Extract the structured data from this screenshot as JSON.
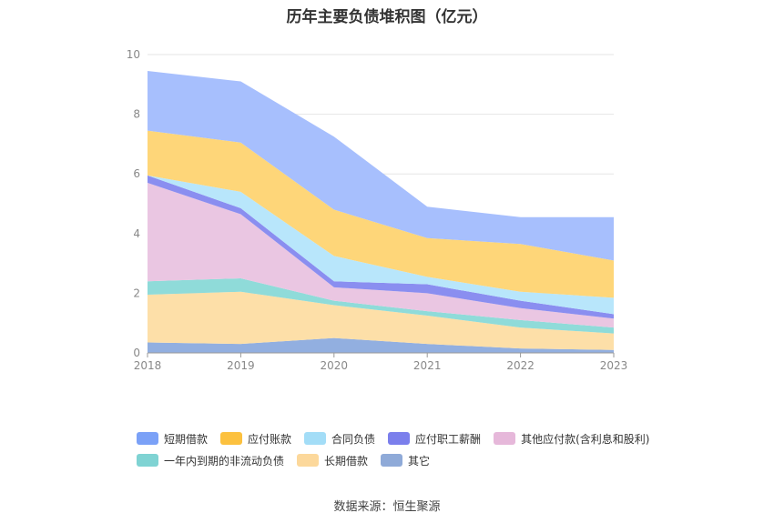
{
  "chart_data": {
    "type": "area",
    "title": "历年主要负债堆积图（亿元）",
    "categories": [
      "2018",
      "2019",
      "2020",
      "2021",
      "2022",
      "2023"
    ],
    "ylim": [
      0,
      10
    ],
    "yticks": [
      "0",
      "2",
      "4",
      "6",
      "8",
      "10"
    ],
    "grid": true,
    "legend_position": "bottom",
    "series": [
      {
        "name": "其它",
        "color": "#92afe0",
        "values": [
          0.35,
          0.3,
          0.5,
          0.3,
          0.15,
          0.1
        ]
      },
      {
        "name": "长期借款",
        "color": "#fddfa8",
        "values": [
          1.6,
          1.75,
          1.1,
          0.95,
          0.7,
          0.55
        ]
      },
      {
        "name": "一年内到期的非流动负债",
        "color": "#8fdbd9",
        "values": [
          0.45,
          0.45,
          0.15,
          0.15,
          0.25,
          0.2
        ]
      },
      {
        "name": "其他应付款(含利息和股利)",
        "color": "#eac6e2",
        "values": [
          3.3,
          2.15,
          0.45,
          0.6,
          0.4,
          0.3
        ]
      },
      {
        "name": "应付职工薪酬",
        "color": "#8a8ef0",
        "values": [
          0.25,
          0.2,
          0.2,
          0.3,
          0.25,
          0.15
        ]
      },
      {
        "name": "合同负债",
        "color": "#b8e6fb",
        "values": [
          0.0,
          0.55,
          0.85,
          0.25,
          0.3,
          0.55
        ]
      },
      {
        "name": "应付账款",
        "color": "#fed679",
        "values": [
          1.5,
          1.65,
          1.55,
          1.3,
          1.6,
          1.25
        ]
      },
      {
        "name": "短期借款",
        "color": "#a7bffd",
        "values": [
          2.0,
          2.05,
          2.45,
          1.05,
          0.9,
          1.45
        ]
      }
    ]
  },
  "legend_colors": {
    "短期借款": "#7ba1f7",
    "应付账款": "#fcc13f",
    "合同负债": "#a3ddf7",
    "应付职工薪酬": "#7b7fec",
    "其他应付款(含利息和股利)": "#e6b8da",
    "一年内到期的非流动负债": "#7fd3d3",
    "长期借款": "#fcd89b",
    "其它": "#8faad8"
  },
  "legend_rows": [
    [
      "短期借款",
      "应付账款",
      "合同负债",
      "应付职工薪酬",
      "其他应付款(含利息和股利)"
    ],
    [
      "一年内到期的非流动负债",
      "长期借款",
      "其它"
    ]
  ],
  "source": "数据来源：恒生聚源"
}
